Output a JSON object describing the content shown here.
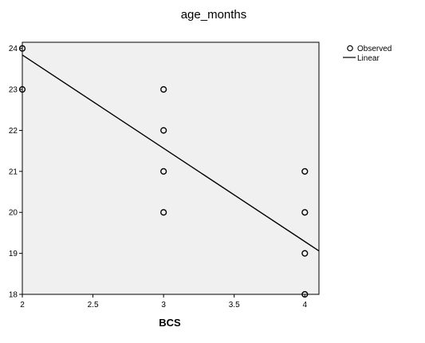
{
  "chart_data": {
    "type": "scatter",
    "title": "age_months",
    "xlabel": "BCS",
    "ylabel": "",
    "xlim": [
      2,
      4.1
    ],
    "ylim": [
      18,
      24.15
    ],
    "x_ticks": [
      "2",
      "2.5",
      "3",
      "3.5",
      "4"
    ],
    "y_ticks": [
      "18",
      "19",
      "20",
      "21",
      "22",
      "23",
      "24"
    ],
    "legend_position": "top-right",
    "grid": false,
    "background_color": "#f0f0f0",
    "series": [
      {
        "name": "Observed",
        "kind": "points",
        "marker": "open-circle",
        "color": "#000000",
        "points": [
          [
            2,
            24
          ],
          [
            2,
            23
          ],
          [
            3,
            23
          ],
          [
            3,
            22
          ],
          [
            3,
            21
          ],
          [
            3,
            20
          ],
          [
            4,
            21
          ],
          [
            4,
            20
          ],
          [
            4,
            19
          ],
          [
            4,
            18
          ]
        ]
      },
      {
        "name": "Linear",
        "kind": "line",
        "color": "#000000",
        "points": [
          [
            2,
            23.84
          ],
          [
            4.1,
            19.06
          ]
        ]
      }
    ]
  }
}
